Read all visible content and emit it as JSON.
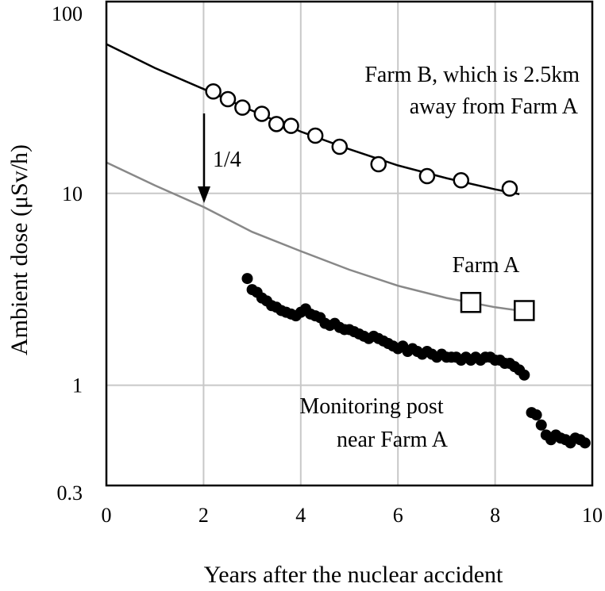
{
  "chart_data": {
    "type": "scatter",
    "xlabel": "Years after the nuclear accident",
    "ylabel": "Ambient dose (μSv/h)",
    "y_scale": "log",
    "xlim": [
      0,
      10
    ],
    "ylim": [
      0.3,
      100
    ],
    "x_ticks": [
      "0",
      "2",
      "4",
      "6",
      "8",
      "10"
    ],
    "y_ticks": [
      "100",
      "10",
      "1",
      "0.3"
    ],
    "grid": true,
    "legend": "none",
    "colors": {
      "farm_b_line": "#000000",
      "farm_a_line": "#888888",
      "monitoring": "#000000",
      "grid": "#c8c8c8"
    },
    "annotations": {
      "farm_b_line1": "Farm B, which is 2.5km",
      "farm_b_line2": "away from Farm A",
      "farm_a": "Farm A",
      "ratio": "1/4",
      "monitoring_line1": "Monitoring post",
      "monitoring_line2": "near Farm A"
    },
    "series": [
      {
        "marker": "open-circle",
        "x": [
          2.2,
          2.5,
          2.8,
          3.2,
          3.5,
          3.8,
          4.3,
          4.8,
          5.6,
          6.6,
          7.3,
          8.3
        ],
        "y": [
          34,
          31,
          28,
          26,
          23,
          22.5,
          20,
          17.5,
          14.2,
          12.3,
          11.7,
          10.6
        ]
      },
      {
        "marker": "line",
        "x": [
          0,
          1,
          2,
          3,
          4,
          5,
          6,
          7,
          8,
          8.5
        ],
        "y": [
          60,
          45,
          35,
          27,
          21,
          17,
          14,
          12,
          10.5,
          9.9
        ]
      },
      {
        "marker": "open-square",
        "x": [
          7.5,
          8.6
        ],
        "y": [
          2.7,
          2.45
        ]
      },
      {
        "marker": "line",
        "x": [
          0,
          1,
          2,
          3,
          4,
          5,
          6,
          7,
          8,
          8.5
        ],
        "y": [
          14.5,
          11,
          8.5,
          6.3,
          5.0,
          4.0,
          3.3,
          2.85,
          2.55,
          2.45
        ]
      },
      {
        "marker": "filled-circle",
        "x": [
          2.9,
          3.0,
          3.1,
          3.2,
          3.3,
          3.4,
          3.5,
          3.6,
          3.7,
          3.8,
          3.9,
          4.0,
          4.1,
          4.2,
          4.3,
          4.4,
          4.5,
          4.6,
          4.7,
          4.8,
          4.9,
          5.0,
          5.1,
          5.2,
          5.3,
          5.4,
          5.5,
          5.6,
          5.7,
          5.8,
          5.9,
          6.0,
          6.1,
          6.2,
          6.3,
          6.4,
          6.5,
          6.6,
          6.7,
          6.8,
          6.9,
          7.0,
          7.1,
          7.2,
          7.3,
          7.4,
          7.5,
          7.6,
          7.7,
          7.8,
          7.9,
          8.0,
          8.1,
          8.2,
          8.3,
          8.4,
          8.5,
          8.6,
          8.75,
          8.85,
          8.95,
          9.05,
          9.15,
          9.25,
          9.35,
          9.45,
          9.55,
          9.65,
          9.75,
          9.85
        ],
        "y": [
          3.6,
          3.15,
          3.05,
          2.85,
          2.75,
          2.6,
          2.55,
          2.45,
          2.4,
          2.35,
          2.3,
          2.4,
          2.5,
          2.35,
          2.3,
          2.25,
          2.1,
          2.05,
          2.1,
          2.0,
          1.95,
          1.95,
          1.9,
          1.85,
          1.8,
          1.75,
          1.8,
          1.75,
          1.7,
          1.65,
          1.6,
          1.55,
          1.6,
          1.5,
          1.55,
          1.5,
          1.45,
          1.5,
          1.45,
          1.4,
          1.45,
          1.4,
          1.4,
          1.4,
          1.35,
          1.4,
          1.35,
          1.4,
          1.35,
          1.4,
          1.4,
          1.35,
          1.35,
          1.3,
          1.3,
          1.25,
          1.2,
          1.13,
          0.72,
          0.7,
          0.62,
          0.55,
          0.52,
          0.55,
          0.53,
          0.52,
          0.5,
          0.53,
          0.52,
          0.5
        ]
      }
    ]
  }
}
